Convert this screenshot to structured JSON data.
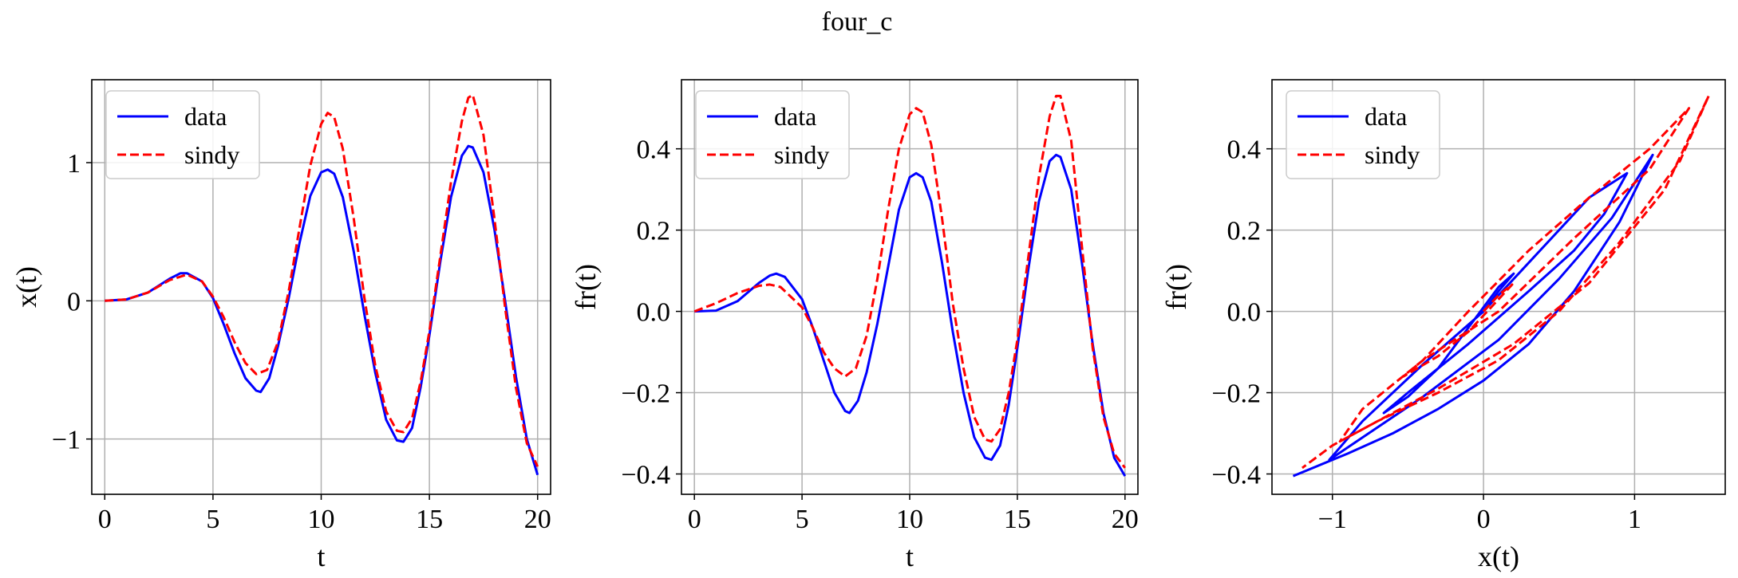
{
  "figure": {
    "title": "four_c"
  },
  "colors": {
    "data": "#0000ff",
    "sindy": "#ff0000",
    "grid": "#b0b0b0",
    "axes": "#000000"
  },
  "chart_data": [
    {
      "type": "line",
      "xlabel": "t",
      "ylabel": "x(t)",
      "xlim": [
        -0.6,
        20.6
      ],
      "ylim": [
        -1.4,
        1.6
      ],
      "xticks": [
        0,
        5,
        10,
        15,
        20
      ],
      "xtick_labels": [
        "0",
        "5",
        "10",
        "15",
        "20"
      ],
      "yticks": [
        -1,
        0,
        1
      ],
      "ytick_labels": [
        "−1",
        "0",
        "1"
      ],
      "grid": true,
      "legend_position": "upper left",
      "series": [
        {
          "name": "data",
          "style": "solid",
          "x": [
            0,
            1,
            2,
            3,
            3.5,
            3.8,
            4.5,
            5,
            5.5,
            6,
            6.5,
            7,
            7.2,
            7.6,
            8,
            8.5,
            9,
            9.5,
            10,
            10.3,
            10.6,
            11,
            11.5,
            12,
            12.5,
            13,
            13.5,
            13.8,
            14.2,
            14.6,
            15,
            15.5,
            16,
            16.5,
            16.8,
            17,
            17.5,
            18,
            18.5,
            19,
            19.5,
            20
          ],
          "y": [
            0,
            0.01,
            0.06,
            0.16,
            0.2,
            0.2,
            0.14,
            0.02,
            -0.17,
            -0.38,
            -0.56,
            -0.65,
            -0.66,
            -0.56,
            -0.33,
            0.02,
            0.42,
            0.76,
            0.93,
            0.95,
            0.92,
            0.75,
            0.36,
            -0.1,
            -0.52,
            -0.86,
            -1.01,
            -1.02,
            -0.92,
            -0.62,
            -0.25,
            0.28,
            0.75,
            1.05,
            1.12,
            1.11,
            0.93,
            0.52,
            0.0,
            -0.55,
            -1.0,
            -1.26
          ]
        },
        {
          "name": "sindy",
          "style": "dashed",
          "x": [
            0,
            1,
            2,
            3,
            3.8,
            4.5,
            5,
            5.5,
            6,
            6.5,
            7,
            7.5,
            8,
            8.5,
            9,
            9.5,
            10,
            10.3,
            10.6,
            11,
            11.5,
            12,
            12.5,
            13,
            13.5,
            13.8,
            14.2,
            14.6,
            15,
            15.5,
            16,
            16.5,
            16.8,
            17,
            17.5,
            18,
            18.5,
            19,
            19.5,
            20
          ],
          "y": [
            0,
            0.01,
            0.06,
            0.15,
            0.19,
            0.14,
            0.03,
            -0.12,
            -0.3,
            -0.45,
            -0.53,
            -0.5,
            -0.3,
            0.07,
            0.53,
            0.98,
            1.28,
            1.36,
            1.33,
            1.1,
            0.6,
            0.02,
            -0.47,
            -0.8,
            -0.94,
            -0.95,
            -0.85,
            -0.58,
            -0.22,
            0.32,
            0.86,
            1.3,
            1.47,
            1.49,
            1.2,
            0.6,
            -0.05,
            -0.63,
            -1.03,
            -1.2
          ]
        }
      ]
    },
    {
      "type": "line",
      "xlabel": "t",
      "ylabel": "fr(t)",
      "xlim": [
        -0.6,
        20.6
      ],
      "ylim": [
        -0.45,
        0.57
      ],
      "xticks": [
        0,
        5,
        10,
        15,
        20
      ],
      "xtick_labels": [
        "0",
        "5",
        "10",
        "15",
        "20"
      ],
      "yticks": [
        -0.4,
        -0.2,
        0.0,
        0.2,
        0.4
      ],
      "ytick_labels": [
        "−0.4",
        "−0.2",
        "0.0",
        "0.2",
        "0.4"
      ],
      "grid": true,
      "legend_position": "upper left",
      "series": [
        {
          "name": "data",
          "style": "solid",
          "x": [
            0,
            1,
            2,
            3,
            3.5,
            3.8,
            4.2,
            5,
            5.5,
            6,
            6.5,
            7,
            7.2,
            7.6,
            8,
            8.5,
            9,
            9.5,
            10,
            10.3,
            10.6,
            11,
            11.5,
            12,
            12.5,
            13,
            13.5,
            13.8,
            14.2,
            14.6,
            15,
            15.5,
            16,
            16.5,
            16.8,
            17,
            17.5,
            18,
            18.5,
            19,
            19.5,
            20
          ],
          "y": [
            0,
            0.002,
            0.025,
            0.07,
            0.088,
            0.093,
            0.085,
            0.03,
            -0.04,
            -0.12,
            -0.2,
            -0.245,
            -0.25,
            -0.22,
            -0.15,
            -0.03,
            0.11,
            0.25,
            0.33,
            0.34,
            0.33,
            0.27,
            0.12,
            -0.05,
            -0.2,
            -0.31,
            -0.36,
            -0.365,
            -0.33,
            -0.23,
            -0.09,
            0.1,
            0.27,
            0.37,
            0.385,
            0.38,
            0.3,
            0.12,
            -0.08,
            -0.25,
            -0.36,
            -0.405
          ]
        },
        {
          "name": "sindy",
          "style": "dashed",
          "x": [
            0,
            1,
            2,
            3,
            3.5,
            4,
            5,
            5.5,
            6,
            6.5,
            7,
            7.5,
            8,
            8.5,
            9,
            9.5,
            10,
            10.3,
            10.6,
            11,
            11.5,
            12,
            12.5,
            13,
            13.5,
            13.8,
            14.2,
            14.6,
            15,
            15.5,
            16,
            16.5,
            16.8,
            17,
            17.5,
            18,
            18.5,
            19,
            19.5,
            20
          ],
          "y": [
            0,
            0.02,
            0.045,
            0.063,
            0.066,
            0.06,
            0.01,
            -0.04,
            -0.1,
            -0.14,
            -0.16,
            -0.14,
            -0.06,
            0.08,
            0.25,
            0.4,
            0.485,
            0.5,
            0.49,
            0.41,
            0.23,
            0.02,
            -0.14,
            -0.26,
            -0.315,
            -0.32,
            -0.29,
            -0.2,
            -0.07,
            0.13,
            0.33,
            0.48,
            0.53,
            0.53,
            0.42,
            0.16,
            -0.09,
            -0.26,
            -0.35,
            -0.385
          ]
        }
      ]
    },
    {
      "type": "line",
      "xlabel": "x(t)",
      "ylabel": "fr(t)",
      "xlim": [
        -1.4,
        1.6
      ],
      "ylim": [
        -0.45,
        0.57
      ],
      "xticks": [
        -1,
        0,
        1
      ],
      "xtick_labels": [
        "−1",
        "0",
        "1"
      ],
      "yticks": [
        -0.4,
        -0.2,
        0.0,
        0.2,
        0.4
      ],
      "ytick_labels": [
        "−0.4",
        "−0.2",
        "0.0",
        "0.2",
        "0.4"
      ],
      "grid": true,
      "legend_position": "upper left",
      "series": [
        {
          "name": "data",
          "style": "solid",
          "x": [
            0,
            0.1,
            0.2,
            0.1,
            -0.1,
            -0.3,
            -0.5,
            -0.66,
            -0.5,
            -0.1,
            0.3,
            0.6,
            0.8,
            0.95,
            0.7,
            0.4,
            0.0,
            -0.4,
            -0.8,
            -1.02,
            -0.8,
            -0.4,
            0.1,
            0.5,
            0.85,
            1.12,
            0.9,
            0.6,
            0.3,
            0.0,
            -0.3,
            -0.6,
            -0.9,
            -1.26
          ],
          "y": [
            0,
            0.05,
            0.093,
            0.06,
            -0.04,
            -0.14,
            -0.21,
            -0.25,
            -0.2,
            -0.08,
            0.05,
            0.15,
            0.24,
            0.34,
            0.28,
            0.16,
            0.0,
            -0.13,
            -0.27,
            -0.365,
            -0.31,
            -0.21,
            -0.07,
            0.08,
            0.23,
            0.385,
            0.22,
            0.05,
            -0.08,
            -0.17,
            -0.24,
            -0.3,
            -0.35,
            -0.405
          ]
        },
        {
          "name": "sindy",
          "style": "dashed",
          "x": [
            0,
            0.1,
            0.19,
            0.1,
            -0.1,
            -0.3,
            -0.53,
            -0.4,
            -0.1,
            0.3,
            0.7,
            1.1,
            1.36,
            1.1,
            0.6,
            0.1,
            -0.4,
            -0.8,
            -0.95,
            -0.7,
            -0.3,
            0.2,
            0.7,
            1.2,
            1.49,
            1.3,
            0.9,
            0.5,
            0.1,
            -0.3,
            -0.7,
            -1.0,
            -1.2
          ],
          "y": [
            0,
            0.04,
            0.066,
            0.03,
            -0.05,
            -0.11,
            -0.16,
            -0.12,
            0.0,
            0.15,
            0.28,
            0.4,
            0.5,
            0.35,
            0.18,
            0.0,
            -0.12,
            -0.24,
            -0.32,
            -0.27,
            -0.19,
            -0.08,
            0.07,
            0.3,
            0.53,
            0.37,
            0.17,
            0.0,
            -0.12,
            -0.2,
            -0.27,
            -0.33,
            -0.385
          ]
        }
      ]
    }
  ]
}
